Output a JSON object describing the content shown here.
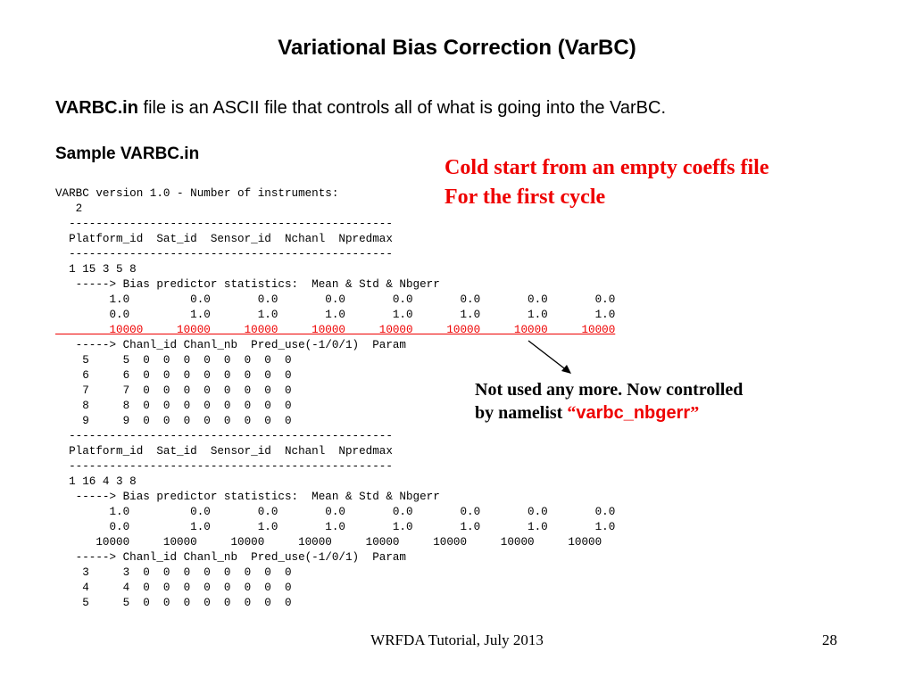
{
  "slide": {
    "title": "Variational Bias Correction (VarBC)",
    "intro_bold": "VARBC.in",
    "intro_rest": " file is an ASCII file that controls all of what is going into the VarBC.",
    "sample_heading": "Sample VARBC.in",
    "code_lines": [
      "VARBC version 1.0 - Number of instruments:",
      "   2",
      "  ------------------------------------------------",
      "  Platform_id  Sat_id  Sensor_id  Nchanl  Npredmax",
      "  ------------------------------------------------",
      "  1 15 3 5 8",
      "   -----> Bias predictor statistics:  Mean & Std & Nbgerr",
      "        1.0         0.0       0.0       0.0       0.0       0.0       0.0       0.0",
      "        0.0         1.0       1.0       1.0       1.0       1.0       1.0       1.0",
      "        10000     10000     10000     10000     10000     10000     10000     10000",
      "   -----> Chanl_id Chanl_nb  Pred_use(-1/0/1)  Param",
      "    5     5  0  0  0  0  0  0  0  0",
      "    6     6  0  0  0  0  0  0  0  0",
      "    7     7  0  0  0  0  0  0  0  0",
      "    8     8  0  0  0  0  0  0  0  0",
      "    9     9  0  0  0  0  0  0  0  0",
      "  ------------------------------------------------",
      "  Platform_id  Sat_id  Sensor_id  Nchanl  Npredmax",
      "  ------------------------------------------------",
      "  1 16 4 3 8",
      "   -----> Bias predictor statistics:  Mean & Std & Nbgerr",
      "        1.0         0.0       0.0       0.0       0.0       0.0       0.0       0.0",
      "        0.0         1.0       1.0       1.0       1.0       1.0       1.0       1.0",
      "      10000     10000     10000     10000     10000     10000     10000     10000",
      "   -----> Chanl_id Chanl_nb  Pred_use(-1/0/1)  Param",
      "    3     3  0  0  0  0  0  0  0  0",
      "    4     4  0  0  0  0  0  0  0  0",
      "    5     5  0  0  0  0  0  0  0  0"
    ],
    "annotation_red": [
      "Cold start from an empty coeffs file",
      "For the first cycle"
    ],
    "annotation_black_line1": "Not used any more. Now controlled",
    "annotation_black_prefix": "by namelist ",
    "annotation_black_quote_open": "“",
    "annotation_black_namelist": "varbc_nbgerr",
    "annotation_black_quote_close": "”",
    "footer": "WRFDA Tutorial, July 2013",
    "page_number": "28"
  },
  "colors": {
    "accent_red": "#ee0000",
    "text": "#000000",
    "background": "#ffffff"
  },
  "highlighted_code_line": 9
}
